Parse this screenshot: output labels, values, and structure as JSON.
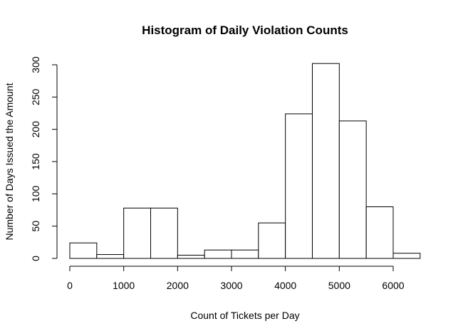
{
  "chart_data": {
    "type": "bar",
    "title": "Histogram of Daily Violation Counts",
    "xlabel": "Count of Tickets per Day",
    "ylabel": "Number of Days Issued the Amount",
    "bin_edges": [
      0,
      500,
      1000,
      1500,
      2000,
      2500,
      3000,
      3500,
      4000,
      4500,
      5000,
      5500,
      6000,
      6500
    ],
    "values": [
      24,
      6,
      78,
      78,
      5,
      13,
      13,
      55,
      224,
      302,
      213,
      80,
      8
    ],
    "xlim": [
      0,
      6500
    ],
    "ylim": [
      0,
      300
    ],
    "x_ticks": [
      0,
      1000,
      2000,
      3000,
      4000,
      5000,
      6000
    ],
    "y_ticks": [
      0,
      50,
      100,
      150,
      200,
      250,
      300
    ],
    "grid": false,
    "bar_fill": "#ffffff",
    "bar_stroke": "#000000"
  }
}
